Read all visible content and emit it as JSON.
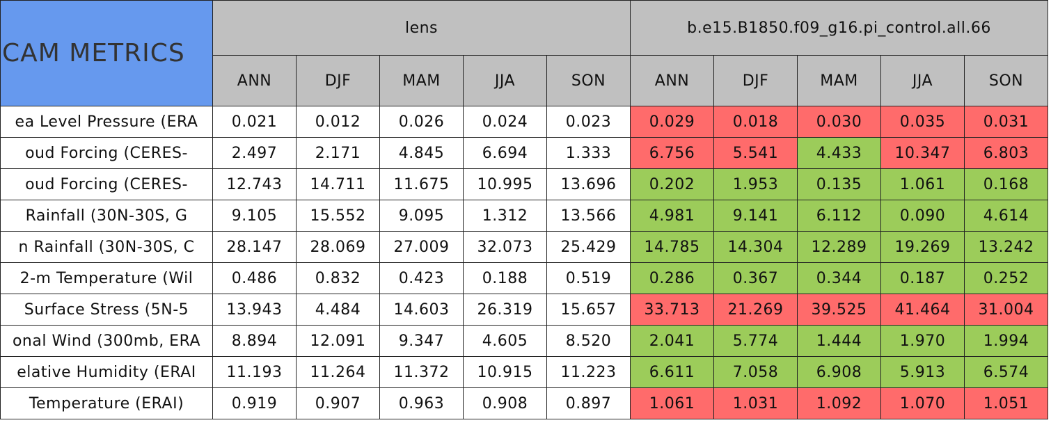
{
  "header": {
    "title": "CAM METRICS",
    "groups": [
      {
        "name": "lens",
        "seasons": [
          "ANN",
          "DJF",
          "MAM",
          "JJA",
          "SON"
        ]
      },
      {
        "name": "b.e15.B1850.f09_g16.pi_control.all.66",
        "seasons": [
          "ANN",
          "DJF",
          "MAM",
          "JJA",
          "SON"
        ]
      }
    ]
  },
  "palette": {
    "red": "#ff6b6b",
    "green": "#9ccc5a",
    "white": "#ffffff"
  },
  "table": {
    "rows": [
      {
        "label": "ea Level Pressure (ERA",
        "values": [
          "0.021",
          "0.012",
          "0.026",
          "0.024",
          "0.023",
          "0.029",
          "0.018",
          "0.030",
          "0.035",
          "0.031"
        ],
        "colors": [
          "white",
          "white",
          "white",
          "white",
          "white",
          "red",
          "red",
          "red",
          "red",
          "red"
        ]
      },
      {
        "label": "oud Forcing (CERES-",
        "values": [
          "2.497",
          "2.171",
          "4.845",
          "6.694",
          "1.333",
          "6.756",
          "5.541",
          "4.433",
          "10.347",
          "6.803"
        ],
        "colors": [
          "white",
          "white",
          "white",
          "white",
          "white",
          "red",
          "red",
          "green",
          "red",
          "red"
        ]
      },
      {
        "label": "oud Forcing (CERES-",
        "values": [
          "12.743",
          "14.711",
          "11.675",
          "10.995",
          "13.696",
          "0.202",
          "1.953",
          "0.135",
          "1.061",
          "0.168"
        ],
        "colors": [
          "white",
          "white",
          "white",
          "white",
          "white",
          "green",
          "green",
          "green",
          "green",
          "green"
        ]
      },
      {
        "label": "Rainfall (30N-30S, G",
        "values": [
          "9.105",
          "15.552",
          "9.095",
          "1.312",
          "13.566",
          "4.981",
          "9.141",
          "6.112",
          "0.090",
          "4.614"
        ],
        "colors": [
          "white",
          "white",
          "white",
          "white",
          "white",
          "green",
          "green",
          "green",
          "green",
          "green"
        ]
      },
      {
        "label": "n Rainfall (30N-30S, C",
        "values": [
          "28.147",
          "28.069",
          "27.009",
          "32.073",
          "25.429",
          "14.785",
          "14.304",
          "12.289",
          "19.269",
          "13.242"
        ],
        "colors": [
          "white",
          "white",
          "white",
          "white",
          "white",
          "green",
          "green",
          "green",
          "green",
          "green"
        ]
      },
      {
        "label": "2-m Temperature (Wil",
        "values": [
          "0.486",
          "0.832",
          "0.423",
          "0.188",
          "0.519",
          "0.286",
          "0.367",
          "0.344",
          "0.187",
          "0.252"
        ],
        "colors": [
          "white",
          "white",
          "white",
          "white",
          "white",
          "green",
          "green",
          "green",
          "green",
          "green"
        ]
      },
      {
        "label": "Surface Stress (5N-5",
        "values": [
          "13.943",
          "4.484",
          "14.603",
          "26.319",
          "15.657",
          "33.713",
          "21.269",
          "39.525",
          "41.464",
          "31.004"
        ],
        "colors": [
          "white",
          "white",
          "white",
          "white",
          "white",
          "red",
          "red",
          "red",
          "red",
          "red"
        ]
      },
      {
        "label": "onal Wind (300mb, ERA",
        "values": [
          "8.894",
          "12.091",
          "9.347",
          "4.605",
          "8.520",
          "2.041",
          "5.774",
          "1.444",
          "1.970",
          "1.994"
        ],
        "colors": [
          "white",
          "white",
          "white",
          "white",
          "white",
          "green",
          "green",
          "green",
          "green",
          "green"
        ]
      },
      {
        "label": "elative Humidity (ERAI",
        "values": [
          "11.193",
          "11.264",
          "11.372",
          "10.915",
          "11.223",
          "6.611",
          "7.058",
          "6.908",
          "5.913",
          "6.574"
        ],
        "colors": [
          "white",
          "white",
          "white",
          "white",
          "white",
          "green",
          "green",
          "green",
          "green",
          "green"
        ]
      },
      {
        "label": "Temperature (ERAI)",
        "values": [
          "0.919",
          "0.907",
          "0.963",
          "0.908",
          "0.897",
          "1.061",
          "1.031",
          "1.092",
          "1.070",
          "1.051"
        ],
        "colors": [
          "white",
          "white",
          "white",
          "white",
          "white",
          "red",
          "red",
          "red",
          "red",
          "red"
        ]
      }
    ]
  }
}
